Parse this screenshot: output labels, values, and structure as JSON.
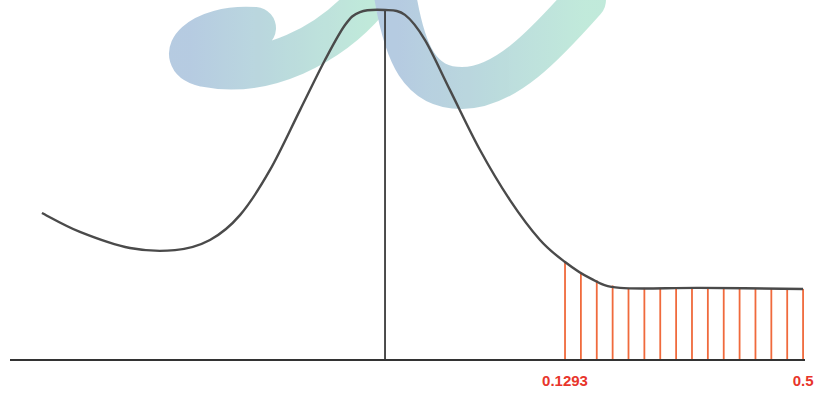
{
  "chart_data": {
    "type": "line",
    "x": [
      -0.6853,
      -0.6261,
      -0.5482,
      -0.4781,
      -0.4236,
      -0.3769,
      -0.3301,
      -0.2834,
      -0.2445,
      -0.2133,
      -0.19,
      -0.151,
      -0.1199,
      -0.0887,
      -0.0498,
      -0.0031,
      0.0436,
      0.0904,
      0.1293,
      0.1682,
      0.215,
      0.3396,
      0.5
    ],
    "values": [
      0.42,
      0.366,
      0.32,
      0.314,
      0.343,
      0.414,
      0.543,
      0.714,
      0.857,
      0.957,
      0.994,
      1.0,
      0.986,
      0.914,
      0.771,
      0.6,
      0.457,
      0.343,
      0.28,
      0.234,
      0.206,
      0.206,
      0.203
    ],
    "color": "#4a4a4a",
    "xlim": [
      -0.735,
      0.503
    ],
    "ylim": [
      0,
      1.02
    ],
    "xticks": [
      0.1293,
      0.5
    ],
    "tick_labels": "x",
    "vline": -0.151,
    "shaded": [
      0.1293,
      0.5
    ]
  }
}
